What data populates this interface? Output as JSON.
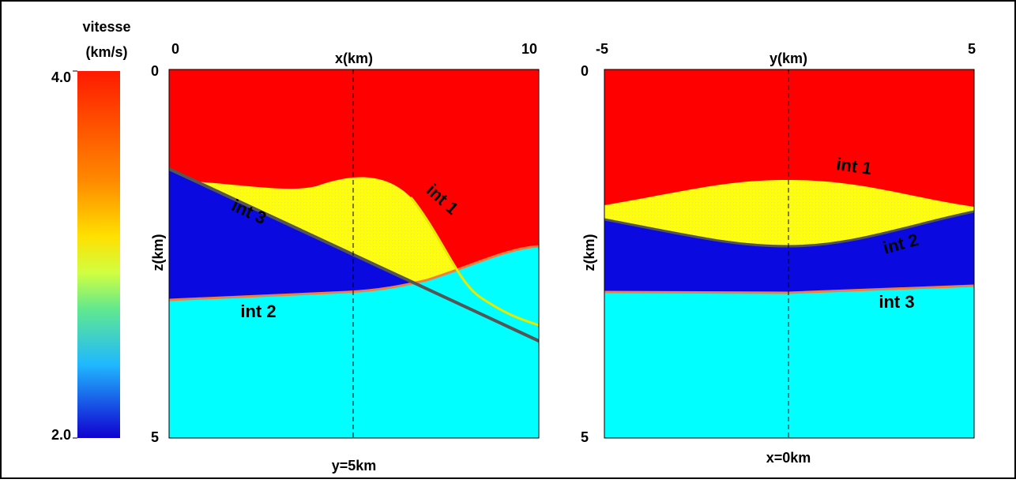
{
  "colorbar": {
    "title": [
      "vitesse",
      "(km/s)"
    ],
    "max": "4.0",
    "min": "2.0"
  },
  "panels": [
    {
      "x_ticks": [
        "0",
        "10"
      ],
      "x_label": "x(km)",
      "z_ticks": [
        "0",
        "5"
      ],
      "z_label": "z(km)",
      "caption": "y=5km",
      "interfaces": [
        "int 1",
        "int 2",
        "int 3"
      ]
    },
    {
      "x_ticks": [
        "-5",
        "5"
      ],
      "x_label": "y(km)",
      "z_ticks": [
        "0",
        "5"
      ],
      "z_label": "z(km)",
      "caption": "x=0km",
      "interfaces": [
        "int 1",
        "int 2",
        "int 3"
      ]
    }
  ]
}
